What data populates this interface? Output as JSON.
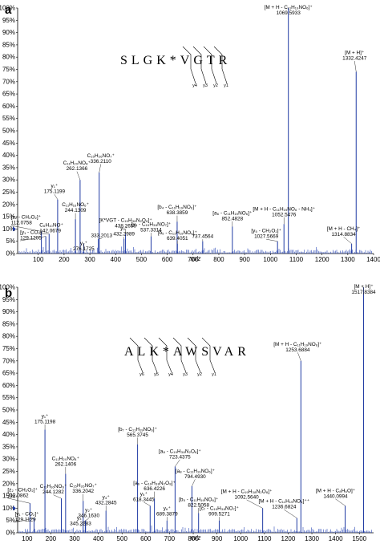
{
  "chart_data": [
    {
      "type": "bar",
      "panel_label": "a",
      "xlabel": "m/z",
      "ylabel": "",
      "xlim": [
        20,
        1400
      ],
      "ylim": [
        0,
        100
      ],
      "xticks": [
        100,
        200,
        300,
        400,
        500,
        600,
        700,
        800,
        900,
        1000,
        1100,
        1200,
        1300,
        1400
      ],
      "xtick_labels": [
        "100",
        "200",
        "300",
        "400",
        "500",
        "600",
        "700",
        "800",
        "900",
        "1000",
        "1100",
        "1200",
        "1300",
        "1400"
      ],
      "yticks": [
        0,
        5,
        10,
        15,
        20,
        25,
        30,
        35,
        40,
        45,
        50,
        55,
        60,
        65,
        70,
        75,
        80,
        85,
        90,
        95,
        100
      ],
      "ytick_labels": [
        "0%",
        "5%",
        "10%",
        "15%",
        "20%",
        "25%",
        "30%",
        "35%",
        "40%",
        "45%",
        "50%",
        "55%",
        "60%",
        "65%",
        "70%",
        "75%",
        "80%",
        "85%",
        "90%",
        "95%",
        "100%"
      ],
      "sequence": "SLGK*VGTR",
      "ion_labels": [
        "y4",
        "y3",
        "y2",
        "y1"
      ],
      "peaks": [
        {
          "mz": 129.1205,
          "rel": 7
        },
        {
          "mz": 112.0758,
          "rel": 9
        },
        {
          "mz": 142.0679,
          "rel": 8
        },
        {
          "mz": 175.1199,
          "rel": 22
        },
        {
          "mz": 244.1309,
          "rel": 14
        },
        {
          "mz": 262.1366,
          "rel": 30
        },
        {
          "mz": 276.1725,
          "rel": 4
        },
        {
          "mz": 333.2013,
          "rel": 6
        },
        {
          "mz": 336.211,
          "rel": 33
        },
        {
          "mz": 432.2989,
          "rel": 6
        },
        {
          "mz": 438.2656,
          "rel": 8
        },
        {
          "mz": 537.3314,
          "rel": 7
        },
        {
          "mz": 638.3859,
          "rel": 13
        },
        {
          "mz": 639.4051,
          "rel": 4
        },
        {
          "mz": 737.4564,
          "rel": 5
        },
        {
          "mz": 852.4828,
          "rel": 11
        },
        {
          "mz": 1027.5669,
          "rel": 5
        },
        {
          "mz": 1052.5476,
          "rel": 12
        },
        {
          "mz": 1069.5933,
          "rel": 100
        },
        {
          "mz": 1314.8834,
          "rel": 4
        },
        {
          "mz": 1332.4247,
          "rel": 74
        }
      ],
      "annotations": [
        {
          "text": "[M + H - C₁₁H₁₉NO₆]⁺",
          "mz": 1069.5933,
          "value": "1069.5933"
        },
        {
          "text": "[M + H]⁺",
          "mz": 1332.4247,
          "value": "1332.4247"
        },
        {
          "text": "C₁₁H₂₀NO₈⁺",
          "mz": 262.1366,
          "value": "262.1366"
        },
        {
          "text": "C₁₅H₂₆NO₇⁺",
          "mz": 336.211,
          "value": "336.2110"
        },
        {
          "text": "y₁⁺",
          "mz": 175.1199,
          "value": "175.1199"
        },
        {
          "text": "C₁₁H₁₆NO₆⁺",
          "mz": 244.1309,
          "value": "244.1309"
        },
        {
          "text": "[K*VGT - C₁₉H₃₈N₂O₈]⁺",
          "mz": 438.2656,
          "value": "438.2656"
        },
        {
          "text": "[b₄ - C₁₁H₁₉NO₆]⁺",
          "mz": 638.3859,
          "value": "638.3859"
        },
        {
          "text": "[z₂ - CH₂O₂]⁺",
          "mz": 112.0758,
          "value": "112.0758"
        },
        {
          "text": "C₆H₁₀NO⁺",
          "mz": 142.0679,
          "value": "142.0679"
        },
        {
          "text": "[y₁ - CO₂]⁺",
          "mz": 129.1205,
          "value": "129.1205"
        },
        {
          "text": "y₂⁺",
          "mz": 276.1725,
          "value": "276.1725"
        },
        {
          "text": "",
          "mz": 333.2013,
          "value": "333.2013"
        },
        {
          "text": "y₃⁺",
          "mz": 432.2989,
          "value": "432.2989"
        },
        {
          "text": "[y₄ - C₁₉H₃₈NO₇]⁺",
          "mz": 537.3314,
          "value": "537.3314"
        },
        {
          "text": "[b₅ - C₁₁H₁₉NO₆]⁺",
          "mz": 639.4051,
          "value": "639.4051"
        },
        {
          "text": "",
          "mz": 737.4564,
          "value": "737.4564"
        },
        {
          "text": "[a₆ - C₁₁H₁₉NO₆]⁺",
          "mz": 852.4828,
          "value": "852.4828"
        },
        {
          "text": "[M + H - C₁₁H₁₉NO₆ - NH₃]⁺",
          "mz": 1052.5476,
          "value": "1052.5476"
        },
        {
          "text": "[y₅ - CH₂O₂]⁺",
          "mz": 1027.5669,
          "value": "1027.5669"
        },
        {
          "text": "[M + H - CH₄]⁺",
          "mz": 1314.8834,
          "value": "1314.8834"
        }
      ]
    },
    {
      "type": "bar",
      "panel_label": "b",
      "xlabel": "m/z",
      "ylabel": "",
      "xlim": [
        60,
        1560
      ],
      "ylim": [
        0,
        100
      ],
      "xticks": [
        100,
        200,
        300,
        400,
        500,
        600,
        700,
        800,
        900,
        1000,
        1100,
        1200,
        1300,
        1400,
        1500
      ],
      "xtick_labels": [
        "100",
        "200",
        "300",
        "400",
        "500",
        "600",
        "700",
        "800",
        "900",
        "1000",
        "1100",
        "1200",
        "1300",
        "1400",
        "1500"
      ],
      "yticks": [
        0,
        5,
        10,
        15,
        20,
        25,
        30,
        35,
        40,
        45,
        50,
        55,
        60,
        65,
        70,
        75,
        80,
        85,
        90,
        95,
        100
      ],
      "ytick_labels": [
        "0%",
        "5%",
        "10%",
        "15%",
        "20%",
        "25%",
        "30%",
        "35%",
        "40%",
        "45%",
        "50%",
        "55%",
        "60%",
        "65%",
        "70%",
        "75%",
        "80%",
        "85%",
        "90%",
        "95%",
        "100%"
      ],
      "sequence": "ALK*AWSVAR",
      "ion_labels": [
        "y6",
        "y5",
        "y4",
        "y3",
        "y2",
        "y1"
      ],
      "peaks": [
        {
          "mz": 112.0862,
          "rel": 12
        },
        {
          "mz": 129.1129,
          "rel": 6
        },
        {
          "mz": 175.1198,
          "rel": 42
        },
        {
          "mz": 244.1282,
          "rel": 14
        },
        {
          "mz": 262.1406,
          "rel": 24
        },
        {
          "mz": 336.2042,
          "rel": 13
        },
        {
          "mz": 345.2283,
          "rel": 5
        },
        {
          "mz": 346.163,
          "rel": 5
        },
        {
          "mz": 432.2845,
          "rel": 9
        },
        {
          "mz": 565.3745,
          "rel": 36
        },
        {
          "mz": 618.3445,
          "rel": 11
        },
        {
          "mz": 636.4226,
          "rel": 14
        },
        {
          "mz": 689.3879,
          "rel": 5
        },
        {
          "mz": 723.4375,
          "rel": 27
        },
        {
          "mz": 794.493,
          "rel": 19
        },
        {
          "mz": 822.5058,
          "rel": 8
        },
        {
          "mz": 909.5271,
          "rel": 5
        },
        {
          "mz": 1092.564,
          "rel": 10
        },
        {
          "mz": 1236.6824,
          "rel": 6
        },
        {
          "mz": 1253.6884,
          "rel": 70
        },
        {
          "mz": 1440.0994,
          "rel": 11
        },
        {
          "mz": 1517.8384,
          "rel": 100
        }
      ],
      "annotations": [
        {
          "text": "[M + H]⁺",
          "mz": 1517.8384,
          "value": "1517.8384"
        },
        {
          "text": "[M + H - C₁₁H₁₉NO₆]⁺",
          "mz": 1253.6884,
          "value": "1253.6884"
        },
        {
          "text": "y₁⁺",
          "mz": 175.1198,
          "value": "175.1198"
        },
        {
          "text": "[b₇ - C₁₁H₁₉NO₆]⁺",
          "mz": 565.3745,
          "value": "565.3745"
        },
        {
          "text": "[a₈ - C₁₉H₃₈N₂O₈]⁺",
          "mz": 723.4375,
          "value": "723.4375"
        },
        {
          "text": "[z₂ - CH₂O₂]⁺",
          "mz": 112.0862,
          "value": "112.0862"
        },
        {
          "text": "C₁₁H₂₀NO₈⁺",
          "mz": 262.1406,
          "value": "262.1406"
        },
        {
          "text": "C₁₁H₁₆NO₆⁺",
          "mz": 244.1282,
          "value": "244.1282"
        },
        {
          "text": "C₁₅H₂₆NO₇⁺",
          "mz": 336.2042,
          "value": "336.2042"
        },
        {
          "text": "[a₆ - C₁₉H₃₈N₂O₈]⁺",
          "mz": 636.4226,
          "value": "636.4226"
        },
        {
          "text": "[a₈ - C₁₁H₁₉NO₆]⁺",
          "mz": 794.493,
          "value": "794.4930"
        },
        {
          "text": "[M + H - C₁₉H₃₈N₂O₈]⁺",
          "mz": 1092.564,
          "value": "1092.5640"
        },
        {
          "text": "[y₁ - CO₂]⁺",
          "mz": 129.1129,
          "value": "129.1129"
        },
        {
          "text": "y₂⁺",
          "mz": 346.163,
          "value": "346.1630"
        },
        {
          "text": "y₃⁺",
          "mz": 345.2283,
          "value": "345.2283"
        },
        {
          "text": "y₄⁺",
          "mz": 432.2845,
          "value": "432.2845"
        },
        {
          "text": "y₅⁺",
          "mz": 618.3445,
          "value": "618.3445"
        },
        {
          "text": "y₆⁺",
          "mz": 689.3879,
          "value": "689.3879"
        },
        {
          "text": "[b₅ - C₁₁H₁₉NO₆]⁺",
          "mz": 822.5058,
          "value": "822.5058"
        },
        {
          "text": "[c₇ - C₁₉H₃₈NO₇]⁺",
          "mz": 909.5271,
          "value": "909.5271"
        },
        {
          "text": "[M + H - C₁₁H₁₉NO₆]⁺⁺",
          "mz": 1236.6824,
          "value": "1236.6824"
        },
        {
          "text": "[M + H - C₈H₆O]⁺",
          "mz": 1440.0994,
          "value": "1440.0994"
        }
      ]
    }
  ]
}
